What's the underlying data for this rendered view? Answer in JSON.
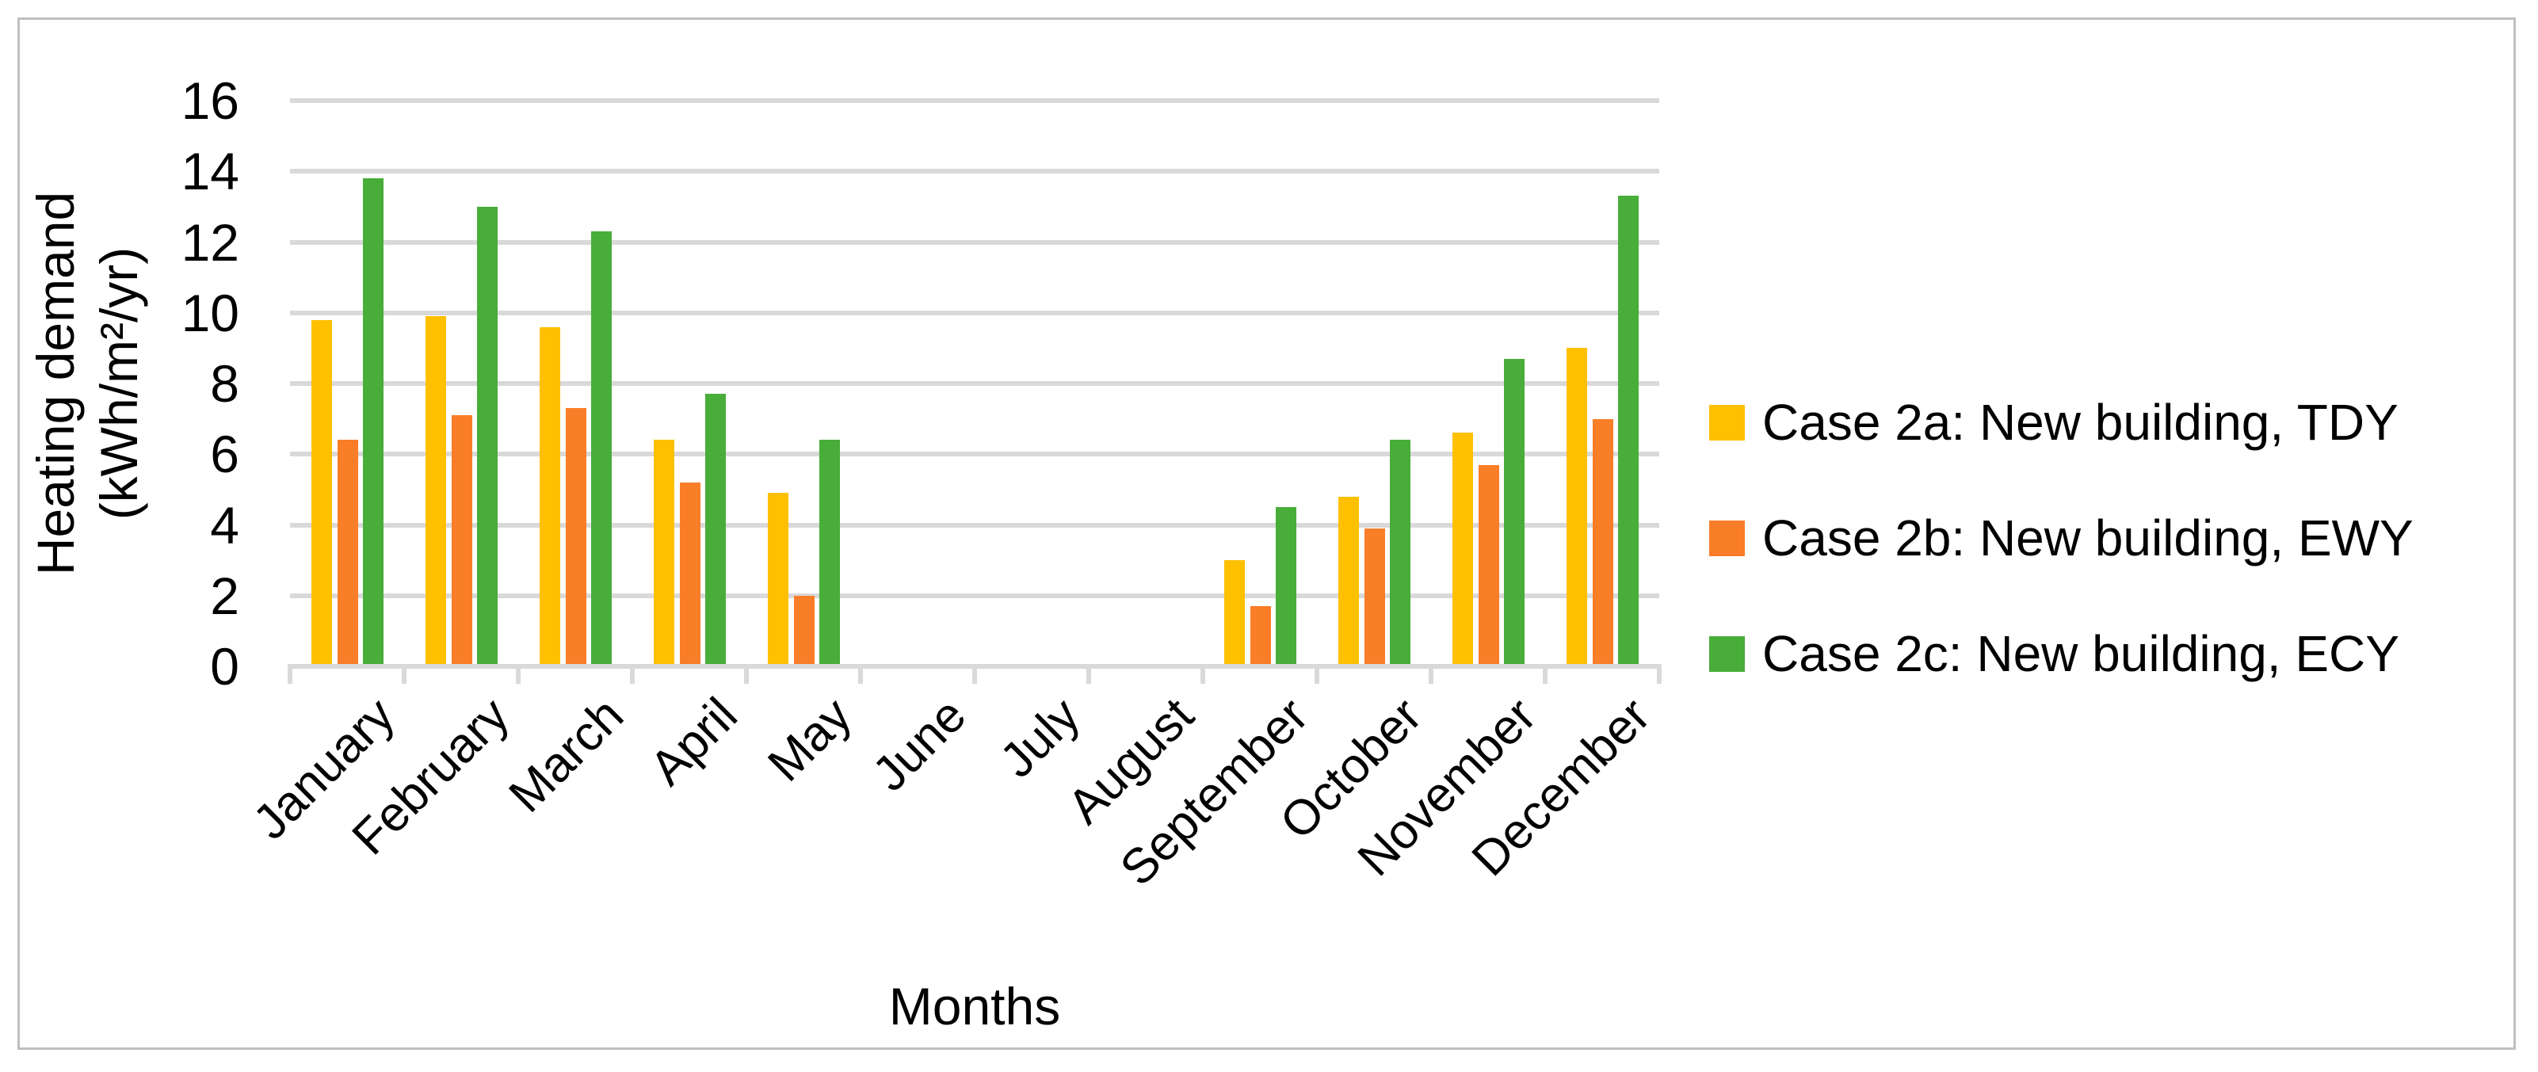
{
  "figure": {
    "background": "#FFFFFF",
    "border_color": "#BFBFBF",
    "gridline_color": "#D9D9D9",
    "text_color": "#000000"
  },
  "chart_data": {
    "type": "bar",
    "title": "",
    "xlabel": "Months",
    "ylabel_line1": "Heating demand",
    "ylabel_line2": "(kWh/m²/yr)",
    "categories": [
      "January",
      "February",
      "March",
      "April",
      "May",
      "June",
      "July",
      "August",
      "September",
      "October",
      "November",
      "December"
    ],
    "series": [
      {
        "name": "Case 2a: New building, TDY",
        "color": "#FFC000",
        "values": [
          9.8,
          9.9,
          9.6,
          6.4,
          4.9,
          0,
          0,
          0,
          3.0,
          4.8,
          6.6,
          9.0
        ]
      },
      {
        "name": "Case 2b: New building, EWY",
        "color": "#FA7D28",
        "values": [
          6.4,
          7.1,
          7.3,
          5.2,
          2.0,
          0,
          0,
          0,
          1.7,
          3.9,
          5.7,
          7.0
        ]
      },
      {
        "name": "Case 2c: New building, ECY",
        "color": "#48AD39",
        "values": [
          13.8,
          13.0,
          12.3,
          7.7,
          6.4,
          0,
          0,
          0,
          4.5,
          6.4,
          8.7,
          13.3
        ]
      }
    ],
    "y_ticks": [
      0,
      2,
      4,
      6,
      8,
      10,
      12,
      14,
      16
    ],
    "ylim": [
      0,
      16
    ],
    "grid": true,
    "legend_position": "right"
  }
}
